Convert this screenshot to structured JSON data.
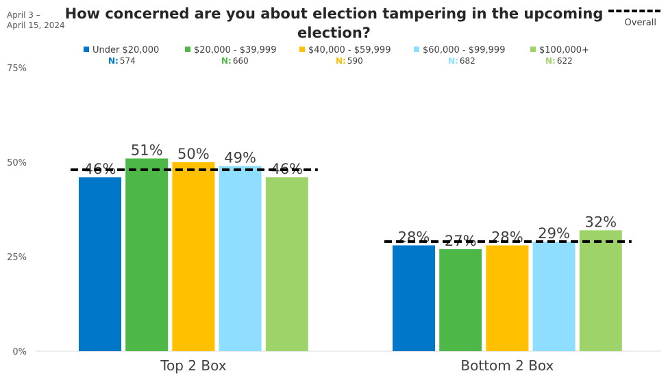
{
  "header": {
    "date_line1": "April 3 –",
    "date_line2": "April 15, 2024",
    "title": "How concerned are you about election tampering in the upcoming election?",
    "overall_label": "Overall"
  },
  "colors": {
    "under_20k": "#0077C8",
    "20k_40k": "#4DB848",
    "40k_60k": "#FFC000",
    "60k_100k": "#8FDEFF",
    "100k_plus": "#9ED36A",
    "overall_line": "#000000"
  },
  "chart_data": {
    "type": "bar",
    "title": "How concerned are you about election tampering in the upcoming election?",
    "categories": [
      "Top 2 Box",
      "Bottom 2 Box"
    ],
    "series": [
      {
        "name": "Under $20,000",
        "n": "574",
        "values": [
          46,
          28
        ],
        "labels": [
          "46%",
          "28%"
        ]
      },
      {
        "name": "$20,000 - $39,999",
        "n": "660",
        "values": [
          51,
          27
        ],
        "labels": [
          "51%",
          "27%"
        ]
      },
      {
        "name": "$40,000 - $59,999",
        "n": "590",
        "values": [
          50,
          28
        ],
        "labels": [
          "50%",
          "28%"
        ]
      },
      {
        "name": "$60,000 - $99,999",
        "n": "682",
        "values": [
          49,
          29
        ],
        "labels": [
          "49%",
          "29%"
        ]
      },
      {
        "name": "$100,000+",
        "n": "622",
        "values": [
          46,
          32
        ],
        "labels": [
          "46%",
          "32%"
        ]
      }
    ],
    "overall": {
      "name": "Overall",
      "values": [
        48,
        29
      ]
    },
    "n_prefix": "N:",
    "y_ticks": [
      "0%",
      "25%",
      "50%",
      "75%"
    ],
    "ylim": [
      0,
      75
    ],
    "grid": false,
    "legend_position": "top"
  }
}
